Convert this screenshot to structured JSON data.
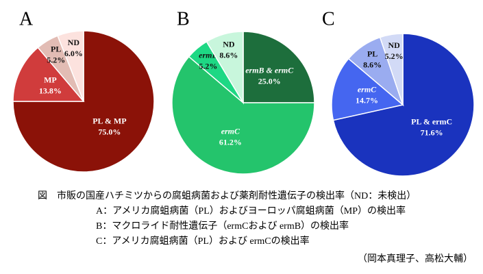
{
  "chart_data": [
    {
      "type": "pie",
      "panel": "A",
      "categories": [
        "PL & MP",
        "MP",
        "PL",
        "ND"
      ],
      "values": [
        75.0,
        13.8,
        5.2,
        6.0
      ],
      "value_labels": [
        "75.0%",
        "13.8%",
        "5.2%",
        "6.0%"
      ],
      "colors": [
        "#8b1208",
        "#d03c3c",
        "#e2bcb4",
        "#fce2de"
      ]
    },
    {
      "type": "pie",
      "panel": "B",
      "categories": [
        "ermB & ermC",
        "ermC",
        "ermB",
        "ND"
      ],
      "values": [
        25.0,
        61.2,
        5.2,
        8.6
      ],
      "value_labels": [
        "25.0%",
        "61.2%",
        "5.2%",
        "8.6%"
      ],
      "colors": [
        "#1d6e3c",
        "#24c46c",
        "#1ed884",
        "#c8f6dc"
      ]
    },
    {
      "type": "pie",
      "panel": "C",
      "categories": [
        "PL & ermC",
        "ermC",
        "PL",
        "ND"
      ],
      "values": [
        71.6,
        14.7,
        8.6,
        5.2
      ],
      "value_labels": [
        "71.6%",
        "14.7%",
        "8.6%",
        "5.2%"
      ],
      "colors": [
        "#1a33be",
        "#4566f0",
        "#9aacf0",
        "#d2daf6"
      ]
    }
  ],
  "caption": {
    "title": "図　市販の国産ハチミツからの腐蛆病菌および薬剤耐性遺伝子の検出率（ND：未検出）",
    "lines": [
      "A：アメリカ腐蛆病菌（PL）およびヨーロッパ腐蛆病菌（MP）の検出率",
      "B：マクロライド耐性遺伝子（ermCおよび ermB）の検出率",
      "C：アメリカ腐蛆病菌（PL）および ermCの検出率"
    ],
    "credit": "（岡本真理子、高松大輔）"
  }
}
